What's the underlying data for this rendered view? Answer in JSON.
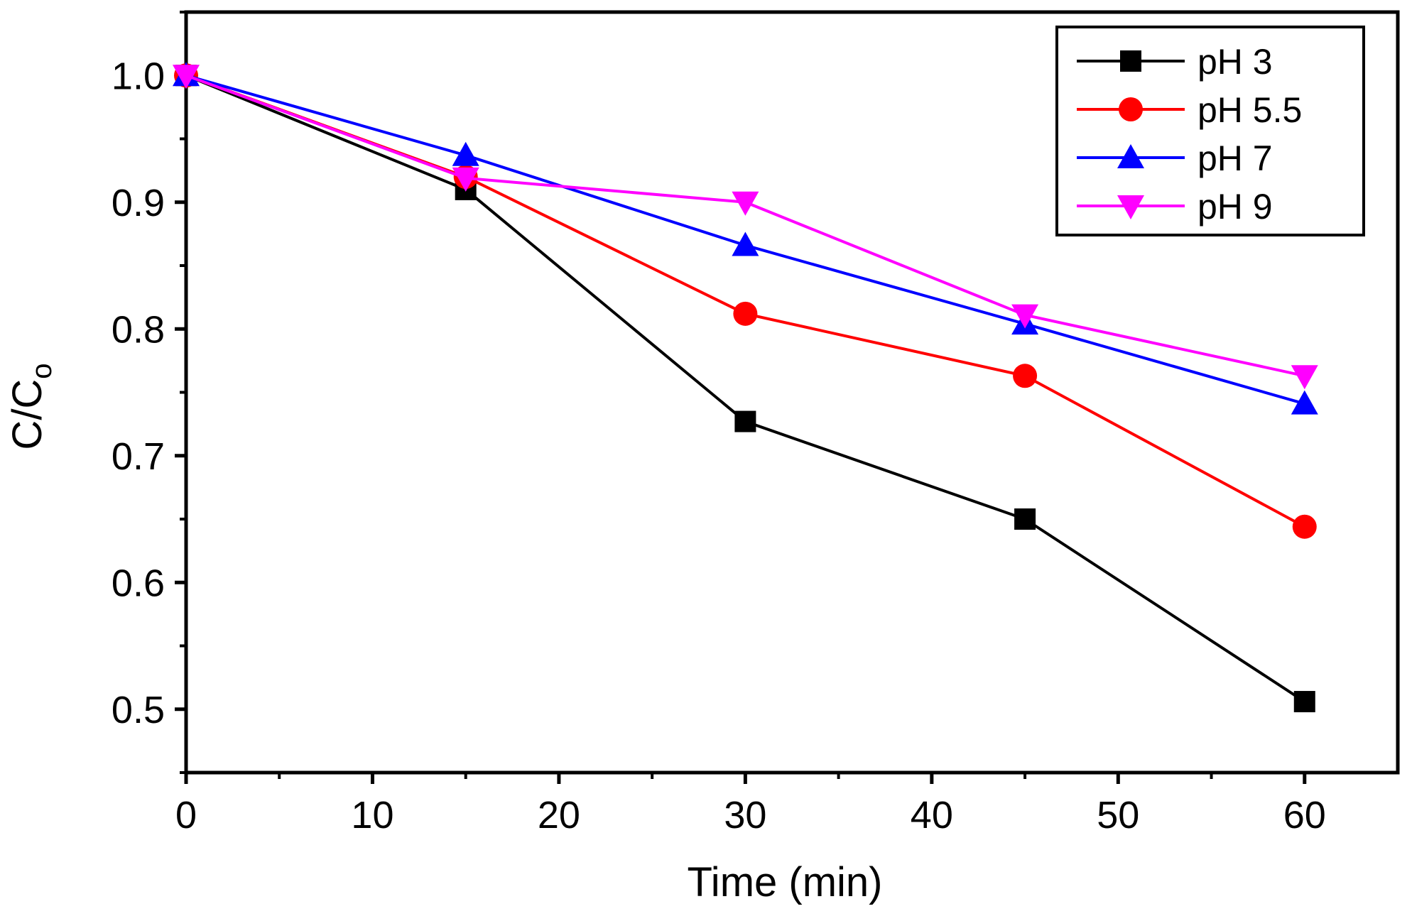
{
  "chart_data": {
    "type": "line",
    "xlabel": "Time (min)",
    "ylabel": "C/C",
    "ylabel_sub": "o",
    "xlim": [
      0,
      65
    ],
    "ylim": [
      0.45,
      1.05
    ],
    "xticks": [
      0,
      10,
      20,
      30,
      40,
      50,
      60
    ],
    "xtick_labels": [
      "0",
      "10",
      "20",
      "30",
      "40",
      "50",
      "60"
    ],
    "yticks": [
      0.5,
      0.6,
      0.7,
      0.8,
      0.9,
      1.0
    ],
    "ytick_labels": [
      "0.5",
      "0.6",
      "0.7",
      "0.8",
      "0.9",
      "1.0"
    ],
    "grid": false,
    "legend_position": "top-right",
    "x": [
      0,
      15,
      30,
      45,
      60
    ],
    "series": [
      {
        "name": "pH 3",
        "values": [
          1.0,
          0.91,
          0.727,
          0.65,
          0.506
        ],
        "color": "#000000",
        "marker": "square"
      },
      {
        "name": "pH 5.5",
        "values": [
          1.0,
          0.92,
          0.812,
          0.763,
          0.644
        ],
        "color": "#ff0000",
        "marker": "circle"
      },
      {
        "name": "pH 7",
        "values": [
          1.0,
          0.937,
          0.866,
          0.804,
          0.741
        ],
        "color": "#0000ff",
        "marker": "triangle-up"
      },
      {
        "name": "pH 9",
        "values": [
          1.0,
          0.919,
          0.9,
          0.811,
          0.763
        ],
        "color": "#ff00ff",
        "marker": "triangle-down"
      }
    ]
  }
}
